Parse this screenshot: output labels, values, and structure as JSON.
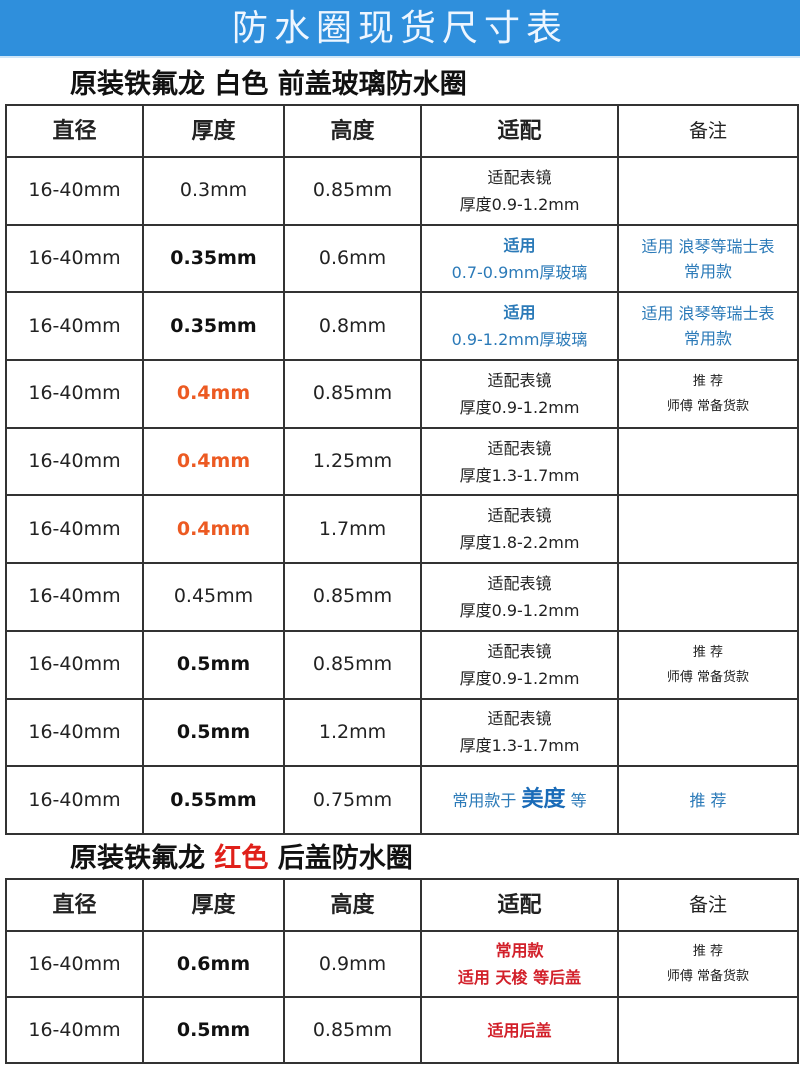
{
  "banner": "防水圈现货尺寸表",
  "section1": {
    "title": "原装铁氟龙 白色 前盖玻璃防水圈",
    "headers": [
      "直径",
      "厚度",
      "高度",
      "适配",
      "备注"
    ],
    "rows": [
      {
        "d": "16-40mm",
        "t": "0.3mm",
        "ts": "n",
        "h": "0.85mm",
        "fit": [
          "适配表镜",
          "厚度0.9-1.2mm"
        ],
        "note": []
      },
      {
        "d": "16-40mm",
        "t": "0.35mm",
        "ts": "b",
        "h": "0.6mm",
        "fit": [
          "适用",
          "0.7-0.9mm厚玻璃"
        ],
        "fitstyle": "blue",
        "note": [
          "适用 浪琴等瑞士表",
          "常用款"
        ],
        "notestyle": "blue"
      },
      {
        "d": "16-40mm",
        "t": "0.35mm",
        "ts": "b",
        "h": "0.8mm",
        "fit": [
          "适用",
          "0.9-1.2mm厚玻璃"
        ],
        "fitstyle": "blue",
        "note": [
          "适用 浪琴等瑞士表",
          "常用款"
        ],
        "notestyle": "blue"
      },
      {
        "d": "16-40mm",
        "t": "0.4mm",
        "ts": "o",
        "h": "0.85mm",
        "fit": [
          "适配表镜",
          "厚度0.9-1.2mm"
        ],
        "note": [
          "推 荐",
          "师傅 常备货款"
        ]
      },
      {
        "d": "16-40mm",
        "t": "0.4mm",
        "ts": "o",
        "h": "1.25mm",
        "fit": [
          "适配表镜",
          "厚度1.3-1.7mm"
        ],
        "note": []
      },
      {
        "d": "16-40mm",
        "t": "0.4mm",
        "ts": "o",
        "h": "1.7mm",
        "fit": [
          "适配表镜",
          "厚度1.8-2.2mm"
        ],
        "note": []
      },
      {
        "d": "16-40mm",
        "t": "0.45mm",
        "ts": "n",
        "h": "0.85mm",
        "fit": [
          "适配表镜",
          "厚度0.9-1.2mm"
        ],
        "note": []
      },
      {
        "d": "16-40mm",
        "t": "0.5mm",
        "ts": "b",
        "h": "0.85mm",
        "fit": [
          "适配表镜",
          "厚度0.9-1.2mm"
        ],
        "note": [
          "推 荐",
          "师傅 常备货款"
        ]
      },
      {
        "d": "16-40mm",
        "t": "0.5mm",
        "ts": "b",
        "h": "1.2mm",
        "fit": [
          "适配表镜",
          "厚度1.3-1.7mm"
        ],
        "note": []
      },
      {
        "d": "16-40mm",
        "t": "0.55mm",
        "ts": "b",
        "h": "0.75mm",
        "fit": [
          "常用款于 ",
          "美度",
          " 等"
        ],
        "fitstyle": "mido",
        "note": [
          "推 荐"
        ],
        "notestyle": "blue"
      }
    ]
  },
  "section2": {
    "title_a": "原装铁氟龙 ",
    "title_red": "红色",
    "title_b": " 后盖防水圈",
    "headers": [
      "直径",
      "厚度",
      "高度",
      "适配",
      "备注"
    ],
    "rows": [
      {
        "d": "16-40mm",
        "t": "0.6mm",
        "ts": "b",
        "h": "0.9mm",
        "fit": [
          "常用款",
          "适用 天梭 等后盖"
        ],
        "fitstyle": "red",
        "note": [
          "推 荐",
          "师傅 常备货款"
        ]
      },
      {
        "d": "16-40mm",
        "t": "0.5mm",
        "ts": "b",
        "h": "0.85mm",
        "fit": [
          "适用后盖"
        ],
        "fitstyle": "red",
        "note": []
      }
    ]
  },
  "colors": {
    "banner": "#2f8fdc",
    "orange": "#ec5a22",
    "blue": "#2b7ab8",
    "red": "#d2202a"
  }
}
